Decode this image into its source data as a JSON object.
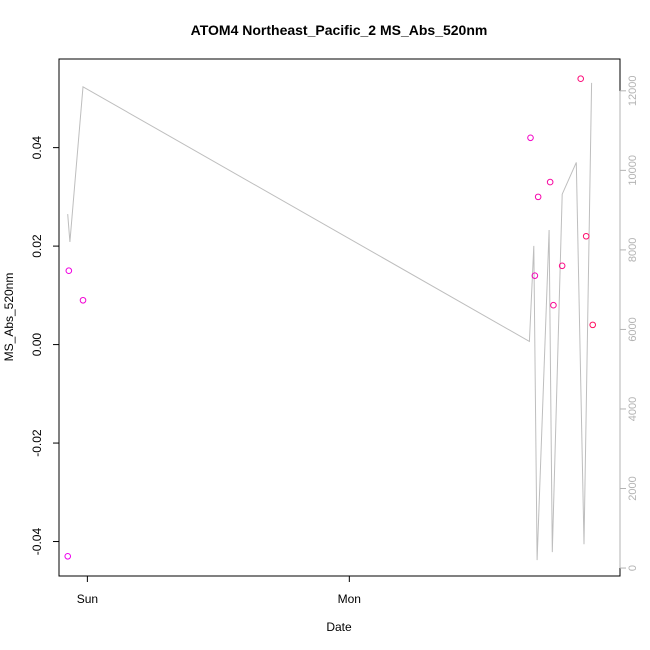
{
  "chart_data": {
    "type": "scatter",
    "title": "ATOM4 Northeast_Pacific_2 MS_Abs_520nm",
    "xlabel": "Date",
    "ylabel": "MS_Abs_520nm",
    "x_tick_labels": [
      "Sun",
      "Mon"
    ],
    "x_ticks_hours": [
      0,
      24
    ],
    "xlim_hours": [
      -2.6,
      48.8
    ],
    "ylim": [
      -0.047,
      0.058
    ],
    "y_ticks": [
      -0.04,
      -0.02,
      0.0,
      0.02,
      0.04
    ],
    "y_tick_labels": [
      "-0.04",
      "-0.02",
      "0.00",
      "0.02",
      "0.04"
    ],
    "y2lim": [
      -200,
      12800
    ],
    "y2_ticks": [
      0,
      2000,
      4000,
      6000,
      8000,
      10000,
      12000
    ],
    "y2_tick_labels": [
      "0",
      "2000",
      "4000",
      "6000",
      "8000",
      "10000",
      "12000"
    ],
    "grid": false,
    "series": [
      {
        "kind": "points",
        "axis": "left",
        "marker": "open-circle",
        "color_start": "#ee00ee",
        "color_end": "#ff1060",
        "points": [
          {
            "x_hours": -1.8,
            "y": -0.043
          },
          {
            "x_hours": -1.7,
            "y": 0.015
          },
          {
            "x_hours": -0.4,
            "y": 0.009
          },
          {
            "x_hours": 40.6,
            "y": 0.042
          },
          {
            "x_hours": 41.0,
            "y": 0.014
          },
          {
            "x_hours": 41.3,
            "y": 0.03
          },
          {
            "x_hours": 42.4,
            "y": 0.033
          },
          {
            "x_hours": 42.7,
            "y": 0.008
          },
          {
            "x_hours": 43.5,
            "y": 0.016
          },
          {
            "x_hours": 45.2,
            "y": 0.054
          },
          {
            "x_hours": 45.7,
            "y": 0.022
          },
          {
            "x_hours": 46.3,
            "y": 0.004
          }
        ]
      },
      {
        "kind": "line",
        "axis": "right",
        "color": "#bebebe",
        "points": [
          {
            "x_hours": -1.8,
            "y": 8900
          },
          {
            "x_hours": -1.6,
            "y": 8200
          },
          {
            "x_hours": -0.4,
            "y": 12100
          },
          {
            "x_hours": 40.5,
            "y": 5700
          },
          {
            "x_hours": 40.9,
            "y": 8100
          },
          {
            "x_hours": 41.2,
            "y": 200
          },
          {
            "x_hours": 42.3,
            "y": 8500
          },
          {
            "x_hours": 42.6,
            "y": 400
          },
          {
            "x_hours": 43.5,
            "y": 9400
          },
          {
            "x_hours": 44.8,
            "y": 10200
          },
          {
            "x_hours": 45.5,
            "y": 600
          },
          {
            "x_hours": 46.2,
            "y": 12200
          }
        ]
      }
    ]
  }
}
